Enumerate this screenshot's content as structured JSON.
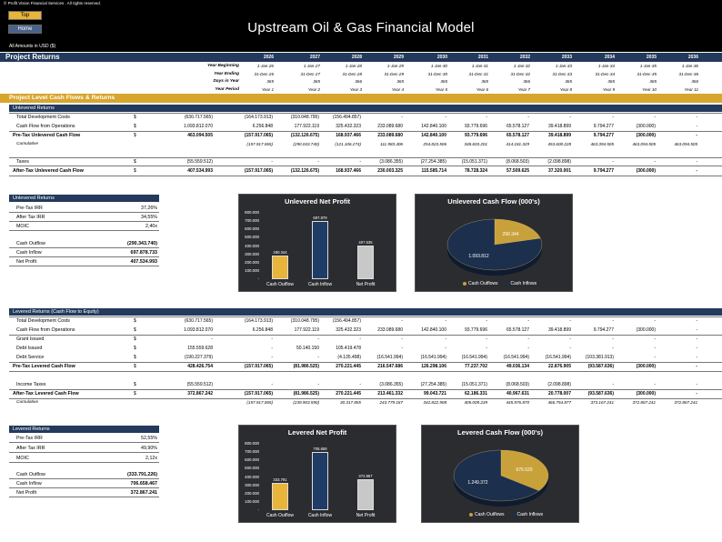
{
  "header": {
    "copyright": "© Profit Vision Financial Services . All rights reserved.",
    "btn_top": "Top",
    "btn_home": "Home",
    "title": "Upstream Oil & Gas Financial Model",
    "amounts": "All Amounts in  USD ($)"
  },
  "project": {
    "title": "Project Returns",
    "years": [
      "2026",
      "2027",
      "2028",
      "2029",
      "2030",
      "2031",
      "2032",
      "2033",
      "2034",
      "2035",
      "2036"
    ],
    "period_labels": [
      "Year Beginning",
      "Year Ending",
      "Days in Year",
      "Year Period"
    ],
    "year_beginning": [
      "1-Jan-26",
      "1-Jan-27",
      "1-Jan-28",
      "1-Jan-29",
      "1-Jan-30",
      "1-Jan-31",
      "1-Jan-32",
      "1-Jan-33",
      "1-Jan-34",
      "1-Jan-35",
      "1-Jan-36"
    ],
    "year_ending": [
      "31-Dec-26",
      "31-Dec-27",
      "31-Dec-28",
      "31-Dec-29",
      "31-Dec-30",
      "31-Dec-31",
      "31-Dec-32",
      "31-Dec-33",
      "31-Dec-34",
      "31-Dec-35",
      "31-Dec-36"
    ],
    "days": [
      "365",
      "365",
      "366",
      "365",
      "365",
      "365",
      "366",
      "365",
      "365",
      "365",
      "366"
    ],
    "periods": [
      "Year 1",
      "Year 2",
      "Year 3",
      "Year 4",
      "Year 5",
      "Year 6",
      "Year 7",
      "Year 8",
      "Year 9",
      "Year 10",
      "Year 11"
    ]
  },
  "section_title": "Project Level Cash Flows & Returns",
  "unlevered": {
    "header": "Unlevered Returns",
    "rows": [
      {
        "label": "Total Development Costs",
        "dollar": "$",
        "style": "n",
        "total": "(630.717.565)",
        "values": [
          "(164.173.913)",
          "(310.048.795)",
          "(156.494.857)",
          "-",
          "-",
          "-",
          "-",
          "-",
          "-",
          "-",
          "-"
        ]
      },
      {
        "label": "Cash Flow from Operations",
        "dollar": "$",
        "style": "n",
        "total": "1.093.812.070",
        "values": [
          "6.256.848",
          "177.922.119",
          "325.432.323",
          "233.089.680",
          "142.840.100",
          "93.779.696",
          "65.578.127",
          "39.418.899",
          "9.794.277",
          "(300.000)",
          "-"
        ]
      },
      {
        "label": "Pre-Tax Unlevered Cash Flow",
        "dollar": "$",
        "style": "b",
        "total": "463.094.505",
        "values": [
          "(157.917.065)",
          "(132.126.675)",
          "168.937.466",
          "233.089.680",
          "142.840.100",
          "93.779.696",
          "65.578.127",
          "39.418.899",
          "9.794.277",
          "(300.000)",
          "-"
        ]
      },
      {
        "label": "Cumulative",
        "dollar": "",
        "style": "i",
        "total": "",
        "values": [
          "(157.917.065)",
          "(290.043.740)",
          "(121.106.274)",
          "111.983.406",
          "254.823.506",
          "348.603.201",
          "414.181.329",
          "453.600.228",
          "463.394.505",
          "463.094.505",
          "463.094.505"
        ]
      },
      {
        "label": "Taxes",
        "dollar": "$",
        "style": "n",
        "total": "(55.559.512)",
        "values": [
          "-",
          "-",
          "-",
          "(3.086.355)",
          "(27.254.385)",
          "(15.051.371)",
          "(8.068.503)",
          "(2.098.898)",
          "-",
          "-",
          "-"
        ]
      },
      {
        "label": "After-Tax Unlevered Cash Flow",
        "dollar": "$",
        "style": "b",
        "total": "407.534.993",
        "values": [
          "(157.917.065)",
          "(132.126.675)",
          "168.937.466",
          "230.003.325",
          "115.585.714",
          "78.728.324",
          "57.509.625",
          "37.320.001",
          "9.794.277",
          "(300.000)",
          "-"
        ]
      }
    ]
  },
  "unlevered_summary": {
    "header": "Unlevered Returns",
    "items": [
      {
        "label": "Pre-Tax IRR",
        "value": "37,26%",
        "bold": false
      },
      {
        "label": "After Tax IRR",
        "value": "34,55%",
        "bold": false
      },
      {
        "label": "MOIC",
        "value": "2,40x",
        "bold": false
      },
      {
        "label": "Cash Outflow",
        "value": "(290.343.740)",
        "bold": true
      },
      {
        "label": "Cash Inflow",
        "value": "697.878.733",
        "bold": true
      },
      {
        "label": "Net Profit",
        "value": "407.534.993",
        "bold": true
      }
    ]
  },
  "levered": {
    "header": "Levered Returns (Cash Flow to Equity)",
    "rows": [
      {
        "label": "Total Development Costs",
        "dollar": "$",
        "style": "n",
        "total": "(630.717.565)",
        "values": [
          "(164.173.913)",
          "(310.048.795)",
          "(156.494.857)",
          "-",
          "-",
          "-",
          "-",
          "-",
          "-",
          "-",
          "-"
        ]
      },
      {
        "label": "Cash Flow from Operations",
        "dollar": "$",
        "style": "n",
        "total": "1.093.812.070",
        "values": [
          "6.256.848",
          "177.922.119",
          "325.432.323",
          "233.089.680",
          "142.840.100",
          "93.779.696",
          "65.578.127",
          "39.418.899",
          "9.794.277",
          "(300.000)",
          "-"
        ]
      },
      {
        "label": "Grant Issued",
        "dollar": "$",
        "style": "n",
        "total": "-",
        "values": [
          "-",
          "-",
          "-",
          "-",
          "-",
          "-",
          "-",
          "-",
          "-",
          "-",
          "-"
        ]
      },
      {
        "label": "Debt Issued",
        "dollar": "$",
        "style": "n",
        "total": "155.559.628",
        "values": [
          "-",
          "50.140.150",
          "105.419.478",
          "-",
          "-",
          "-",
          "-",
          "-",
          "-",
          "-",
          "-"
        ]
      },
      {
        "label": "Debt Service",
        "dollar": "$",
        "style": "n",
        "total": "(190.227.379)",
        "values": [
          "-",
          "-",
          "(4.135.498)",
          "(16.541.994)",
          "(16.541.994)",
          "(16.541.994)",
          "(16.541.994)",
          "(16.541.994)",
          "(103.381.913)",
          "-",
          "-"
        ]
      },
      {
        "label": "Pre-Tax Levered Cash Flow",
        "dollar": "$",
        "style": "b",
        "total": "428.426.754",
        "values": [
          "(157.917.065)",
          "(81.986.525)",
          "270.221.445",
          "216.547.686",
          "126.298.106",
          "77.237.702",
          "49.036.134",
          "22.876.905",
          "(93.587.636)",
          "(300.000)",
          "-"
        ]
      },
      {
        "label": "Income Taxes",
        "dollar": "$",
        "style": "n",
        "total": "(55.559.512)",
        "values": [
          "-",
          "-",
          "-",
          "(3.086.355)",
          "(27.254.385)",
          "(15.051.371)",
          "(8.068.503)",
          "(2.098.898)",
          "-",
          "-",
          "-"
        ]
      },
      {
        "label": "After-Tax Levered Cash Flow",
        "dollar": "$",
        "style": "b",
        "total": "372.867.242",
        "values": [
          "(157.917.065)",
          "(81.986.525)",
          "270.221.445",
          "213.461.332",
          "99.043.721",
          "62.186.331",
          "40.967.631",
          "20.778.007",
          "(93.587.636)",
          "(300.000)",
          "-"
        ]
      },
      {
        "label": "Cumulative",
        "dollar": "",
        "style": "i",
        "total": "",
        "values": [
          "(157.917.065)",
          "(239.903.590)",
          "30.317.855",
          "243.779.187",
          "342.822.908",
          "405.009.239",
          "445.976.870",
          "466.754.877",
          "373.167.241",
          "372.867.241",
          "372.867.241"
        ]
      }
    ]
  },
  "levered_summary": {
    "header": "Levered Returns",
    "items": [
      {
        "label": "Pre-Tax IRR",
        "value": "52,55%",
        "bold": false
      },
      {
        "label": "After Tax IRR",
        "value": "49,90%",
        "bold": false
      },
      {
        "label": "MOIC",
        "value": "2,12x",
        "bold": false
      },
      {
        "label": "Cash Outflow",
        "value": "(333.791.226)",
        "bold": true
      },
      {
        "label": "Cash Inflow",
        "value": "706.658.467",
        "bold": true
      },
      {
        "label": "Net Profit",
        "value": "372.867.241",
        "bold": true
      }
    ]
  },
  "chart_data": [
    {
      "type": "bar",
      "title": "Unlevered Net Profit",
      "categories": [
        "Cash Outflow",
        "Cash Inflow",
        "Net Profit"
      ],
      "values": [
        290344,
        697879,
        407535
      ],
      "value_labels": [
        "290.344",
        "697.879",
        "407.535"
      ],
      "ylim": [
        0,
        800000
      ],
      "yticks": [
        "800.000",
        "700.000",
        "600.000",
        "500.000",
        "400.000",
        "300.000",
        "200.000",
        "100.000",
        "-"
      ],
      "colors": [
        "#e8b43a",
        "#1f3c66",
        "#c8c8c8"
      ]
    },
    {
      "type": "pie",
      "title": "Unlevered Cash Flow (000's)",
      "categories": [
        "Cash Outflows",
        "Cash Inflows"
      ],
      "values": [
        290344,
        1093812
      ],
      "value_labels": [
        "290.344",
        "1.093.812"
      ],
      "colors": [
        "#c9a13b",
        "#1c2f4d"
      ]
    },
    {
      "type": "bar",
      "title": "Levered Net Profit",
      "categories": [
        "Cash Outflow",
        "Cash Inflow",
        "Net Profit"
      ],
      "values": [
        333791,
        706658,
        372867
      ],
      "value_labels": [
        "333.791",
        "706.658",
        "372.867"
      ],
      "ylim": [
        0,
        800000
      ],
      "yticks": [
        "800.000",
        "700.000",
        "600.000",
        "500.000",
        "400.000",
        "300.000",
        "200.000",
        "100.000",
        "-"
      ],
      "colors": [
        "#e8b43a",
        "#1f3c66",
        "#c8c8c8"
      ]
    },
    {
      "type": "pie",
      "title": "Levered Cash Flow (000's)",
      "categories": [
        "Cash Outflows",
        "Cash Inflows"
      ],
      "values": [
        676520,
        1249372
      ],
      "value_labels": [
        "676.520",
        "1.249.372"
      ],
      "colors": [
        "#c9a13b",
        "#1c2f4d"
      ]
    }
  ]
}
